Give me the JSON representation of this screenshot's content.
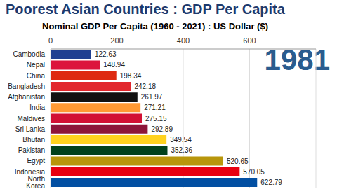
{
  "chart_data": {
    "type": "bar",
    "title": "Poorest Asian Countries : GDP Per Capita",
    "subtitle": "Nominal GDP Per Capita (1960 - 2021) : US Dollar ($)",
    "annotation": "1981",
    "orientation": "horizontal",
    "categories": [
      "Cambodia",
      "Nepal",
      "China",
      "Bangladesh",
      "Afghanistan",
      "India",
      "Maldives",
      "Sri Lanka",
      "Bhutan",
      "Pakistan",
      "Egypt",
      "Indonesia",
      "North Korea"
    ],
    "values": [
      122.63,
      148.94,
      198.34,
      242.18,
      261.97,
      271.21,
      275.15,
      292.89,
      349.54,
      352.36,
      520.65,
      570.05,
      622.79
    ],
    "colors": [
      "#1f3f91",
      "#dc143c",
      "#de2910",
      "#e2272d",
      "#111111",
      "#ff9933",
      "#d21034",
      "#8d153a",
      "#ffd21f",
      "#01411c",
      "#b8960b",
      "#e70011",
      "#024fa2"
    ],
    "xlim": [
      0,
      800
    ],
    "xticks": [
      0,
      200,
      400,
      600
    ],
    "grid": true,
    "data_labels": true
  }
}
